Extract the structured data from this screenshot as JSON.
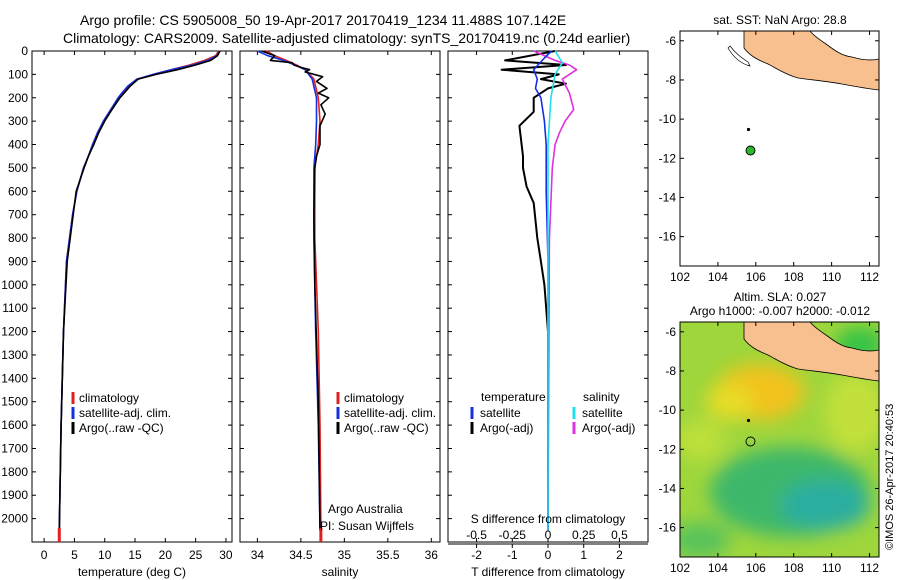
{
  "title": {
    "line1": "Argo profile: CS 5905008_50 19-Apr-2017 20170419_1234 11.488S 107.142E",
    "line2": "Climatology: CARS2009. Satellite-adjusted climatology: synTS_20170419.nc (0.24d earlier)"
  },
  "colors": {
    "climatology": "#e02020",
    "satellite": "#1530e0",
    "argo": "#000000",
    "sal_satellite": "#20e0e8",
    "sal_argo": "#e030e0",
    "land": "#f7c08e",
    "float": "#2db52d"
  },
  "chart_data": [
    {
      "type": "line",
      "panel": "temperature",
      "xlabel": "temperature (deg C)",
      "ylabel": "",
      "xlim": [
        -2,
        31
      ],
      "ylim": [
        2100,
        0
      ],
      "xticks": [
        0,
        5,
        10,
        15,
        20,
        25,
        30
      ],
      "yticks": [
        0,
        100,
        200,
        300,
        400,
        500,
        600,
        700,
        800,
        900,
        1000,
        1100,
        1200,
        1300,
        1400,
        1500,
        1600,
        1700,
        1800,
        1900,
        2000
      ],
      "legend": [
        "climatology",
        "satellite-adj. clim.",
        "Argo(..raw -QC)"
      ],
      "series": [
        {
          "name": "climatology",
          "x": [
            28.8,
            28.3,
            26.5,
            24,
            21,
            18,
            15.5,
            14,
            13,
            12.3,
            11,
            9.8,
            8.8,
            8,
            7.3,
            6.5,
            5.4,
            4.7,
            3.7,
            3.2,
            2.8,
            2.5
          ],
          "y": [
            0,
            20,
            40,
            60,
            80,
            100,
            120,
            150,
            180,
            200,
            250,
            300,
            350,
            400,
            450,
            500,
            600,
            700,
            900,
            1200,
            1600,
            2050
          ]
        },
        {
          "name": "satellite-adj. clim.",
          "x": [
            29,
            28.5,
            27,
            24.5,
            21,
            18,
            15.3,
            13.8,
            12.8,
            12.2,
            11,
            9.8,
            8.8,
            8,
            7.3,
            6.5,
            5.4,
            4.7,
            3.7,
            3.2,
            2.8,
            2.5
          ],
          "y": [
            0,
            20,
            40,
            60,
            80,
            100,
            120,
            150,
            180,
            200,
            250,
            300,
            350,
            400,
            450,
            500,
            600,
            700,
            900,
            1200,
            1600,
            2050
          ]
        },
        {
          "name": "Argo(..raw -QC)",
          "x": [
            29,
            28.6,
            27.5,
            25,
            22,
            18.5,
            15.5,
            14.2,
            13.2,
            12.5,
            11.2,
            10,
            9,
            8.2,
            7.3,
            6.6,
            5.3,
            4.8,
            3.8,
            3.2,
            2.8,
            2.5
          ],
          "y": [
            0,
            20,
            40,
            60,
            80,
            100,
            120,
            150,
            180,
            200,
            250,
            300,
            350,
            400,
            450,
            500,
            600,
            700,
            900,
            1200,
            1600,
            2050
          ]
        }
      ],
      "annotations": []
    },
    {
      "type": "line",
      "panel": "salinity",
      "xlabel": "salinity",
      "xlim": [
        33.8,
        36.1
      ],
      "ylim": [
        2100,
        0
      ],
      "xticks": [
        34,
        34.5,
        35,
        35.5,
        36
      ],
      "legend": [
        "climatology",
        "satellite-adj. clim.",
        "Argo(..raw -QC)"
      ],
      "series": [
        {
          "name": "climatology",
          "x": [
            34.1,
            34.2,
            34.33,
            34.45,
            34.55,
            34.65,
            34.7,
            34.72,
            34.7,
            34.66,
            34.66,
            34.7,
            34.72,
            34.73
          ],
          "y": [
            0,
            20,
            40,
            60,
            80,
            120,
            200,
            300,
            400,
            500,
            800,
            1200,
            1600,
            2050
          ]
        },
        {
          "name": "satellite-adj. clim.",
          "x": [
            34.0,
            34.12,
            34.3,
            34.43,
            34.55,
            34.63,
            34.68,
            34.68,
            34.67,
            34.65,
            34.65,
            34.67,
            34.7,
            34.72
          ],
          "y": [
            0,
            20,
            40,
            60,
            80,
            120,
            200,
            300,
            400,
            500,
            800,
            1200,
            1600,
            2050
          ]
        },
        {
          "name": "Argo(..raw -QC)",
          "x": [
            34.05,
            34.2,
            34.15,
            34.4,
            34.42,
            34.5,
            34.6,
            34.55,
            34.75,
            34.68,
            34.8,
            34.7,
            34.82,
            34.73,
            34.78,
            34.72,
            34.72,
            34.68,
            34.66,
            34.65,
            34.66,
            34.7,
            34.72
          ],
          "y": [
            0,
            20,
            40,
            50,
            60,
            70,
            80,
            90,
            110,
            130,
            160,
            180,
            200,
            230,
            270,
            320,
            400,
            450,
            500,
            700,
            1000,
            1500,
            2050
          ]
        }
      ],
      "annotations": [
        "Argo Australia",
        "PI: Susan Wijffels"
      ]
    },
    {
      "type": "line",
      "panel": "difference",
      "xlabel": "T difference from climatology",
      "x2label": "S difference from climatology",
      "xlim": [
        -2.8,
        2.8
      ],
      "x2lim": [
        -0.7,
        0.7
      ],
      "ylim": [
        2100,
        0
      ],
      "xticks": [
        -2,
        -1,
        0,
        1,
        2
      ],
      "x2ticks": [
        -0.5,
        -0.25,
        0,
        0.25,
        0.5
      ],
      "legend_temperature_title": "temperature",
      "legend_salinity_title": "salinity",
      "legend": [
        "satellite",
        "Argo(-adj)",
        "satellite",
        "Argo(-adj)"
      ],
      "series": [
        {
          "name": "satellite",
          "axis": "T",
          "x": [
            0.1,
            -0.1,
            -0.4,
            -0.3,
            -0.35,
            -0.2,
            -0.1,
            -0.05,
            -0.05,
            0,
            0,
            0
          ],
          "y": [
            0,
            30,
            80,
            120,
            160,
            200,
            300,
            400,
            600,
            900,
            1400,
            2050
          ]
        },
        {
          "name": "Argo(-adj)",
          "axis": "T",
          "x": [
            0.2,
            -1.2,
            0.5,
            -1.3,
            0.3,
            -0.2,
            0.5,
            0,
            -0.2,
            -0.4,
            -0.4,
            -0.8,
            -0.7,
            -0.7,
            -0.6,
            -0.4,
            -0.3,
            -0.2,
            -0.1,
            0,
            0
          ],
          "y": [
            0,
            40,
            60,
            80,
            100,
            120,
            140,
            160,
            180,
            200,
            260,
            320,
            450,
            500,
            580,
            650,
            800,
            900,
            1000,
            1200,
            2050
          ]
        },
        {
          "name": "satellite",
          "axis": "S",
          "x": [
            0.05,
            0.1,
            0.05,
            0.02,
            0,
            0,
            0,
            0
          ],
          "y": [
            0,
            50,
            100,
            200,
            400,
            800,
            1400,
            2050
          ]
        },
        {
          "name": "Argo(-adj)",
          "axis": "S",
          "x": [
            -0.1,
            0.05,
            0.15,
            0.2,
            0.1,
            0.15,
            0.18,
            0.12,
            0.08,
            0.05,
            0.03,
            0.01,
            0
          ],
          "y": [
            0,
            40,
            60,
            80,
            120,
            180,
            250,
            300,
            350,
            400,
            500,
            800,
            2050
          ]
        }
      ]
    },
    {
      "type": "map",
      "panel": "sst_map",
      "title": "sat. SST: NaN Argo: 28.8",
      "xlim": [
        102,
        112.5
      ],
      "ylim": [
        -17.5,
        -5.5
      ],
      "xticks": [
        102,
        104,
        106,
        108,
        110,
        112
      ],
      "yticks": [
        -6,
        -8,
        -10,
        -12,
        -14,
        -16
      ],
      "float_position": {
        "lon": 107.142,
        "lat": -11.488
      }
    },
    {
      "type": "heatmap",
      "panel": "sla_map",
      "title_line1": "Altim. SLA: 0.027",
      "title_line2": "Argo h1000: -0.007 h2000: -0.012",
      "xlim": [
        102,
        112.5
      ],
      "ylim": [
        -17.5,
        -5.5
      ],
      "xticks": [
        102,
        104,
        106,
        108,
        110,
        112
      ],
      "yticks": [
        -6,
        -8,
        -10,
        -12,
        -14,
        -16
      ],
      "float_position": {
        "lon": 107.142,
        "lat": -11.488
      }
    }
  ],
  "credit": "©IMOS 26-Apr-2017 20:40:53"
}
